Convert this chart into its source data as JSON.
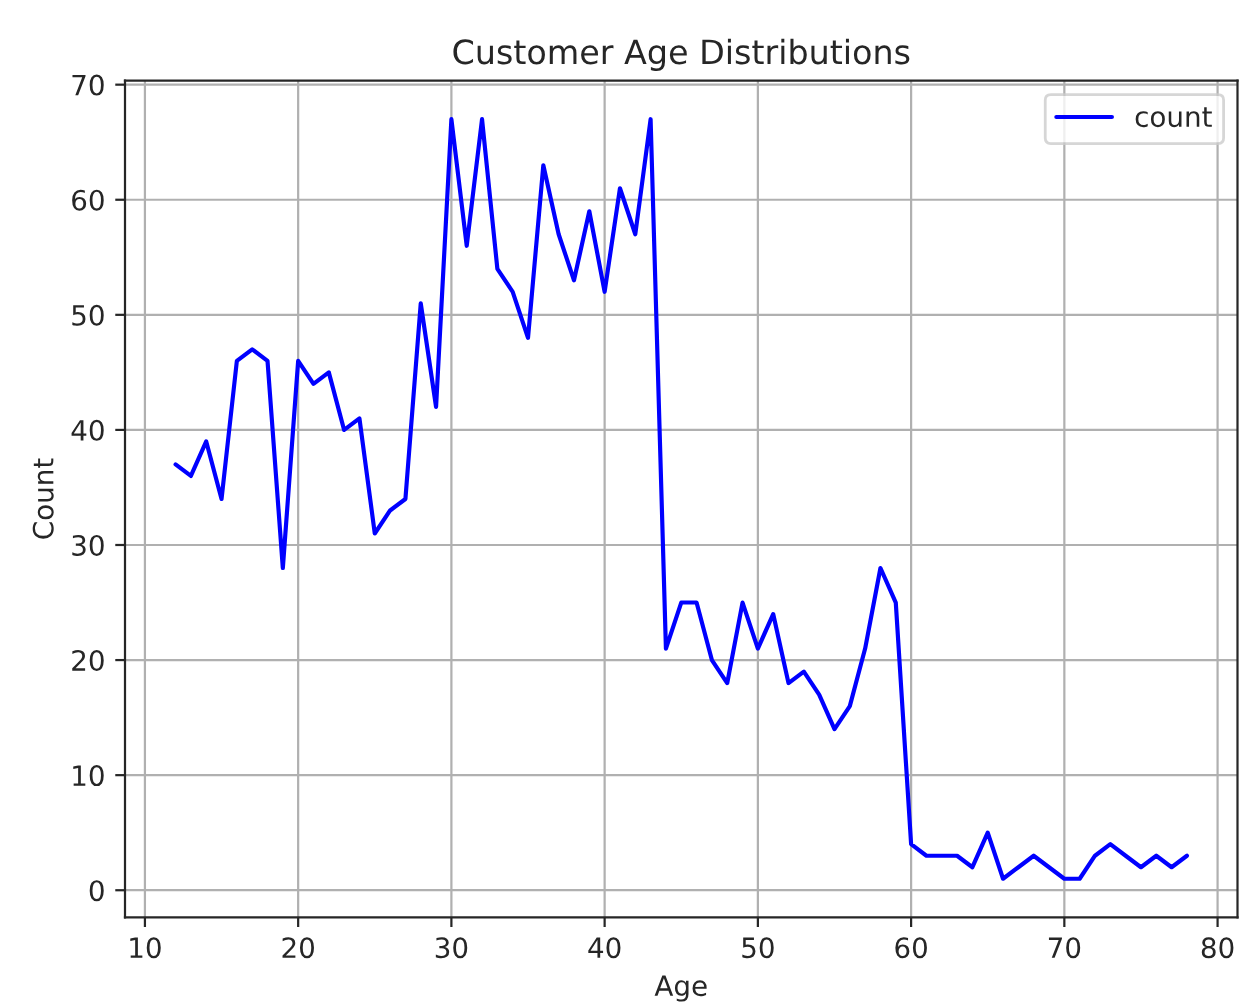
{
  "chart_data": {
    "type": "line",
    "title": "Customer Age Distributions",
    "xlabel": "Age",
    "ylabel": "Count",
    "x": [
      12,
      13,
      14,
      15,
      16,
      17,
      18,
      19,
      20,
      21,
      22,
      23,
      24,
      25,
      26,
      27,
      28,
      29,
      30,
      31,
      32,
      33,
      34,
      35,
      36,
      37,
      38,
      39,
      40,
      41,
      42,
      43,
      44,
      45,
      46,
      47,
      48,
      49,
      50,
      51,
      52,
      53,
      54,
      55,
      56,
      57,
      58,
      59,
      60,
      61,
      62,
      63,
      64,
      65,
      66,
      67,
      68,
      69,
      70,
      71,
      72,
      73,
      74,
      75,
      76,
      77,
      78
    ],
    "series": [
      {
        "name": "count",
        "color": "#0000ff",
        "values": [
          37,
          36,
          39,
          34,
          46,
          47,
          46,
          28,
          46,
          44,
          45,
          40,
          41,
          31,
          33,
          34,
          51,
          42,
          67,
          56,
          67,
          54,
          52,
          48,
          63,
          57,
          53,
          59,
          52,
          61,
          57,
          67,
          21,
          25,
          25,
          20,
          18,
          25,
          21,
          24,
          18,
          19,
          17,
          14,
          16,
          21,
          28,
          25,
          4,
          3,
          3,
          3,
          2,
          5,
          1,
          2,
          3,
          2,
          1,
          1,
          3,
          4,
          3,
          2,
          3,
          2,
          3
        ]
      }
    ],
    "xlim": [
      8.7,
      81.3
    ],
    "ylim": [
      -2.35,
      70.35
    ],
    "xticks": [
      10,
      20,
      30,
      40,
      50,
      60,
      70,
      80
    ],
    "yticks": [
      0,
      10,
      20,
      30,
      40,
      50,
      60,
      70
    ],
    "grid": true,
    "legend": "top right",
    "marker": "none",
    "line_style": "solid"
  }
}
